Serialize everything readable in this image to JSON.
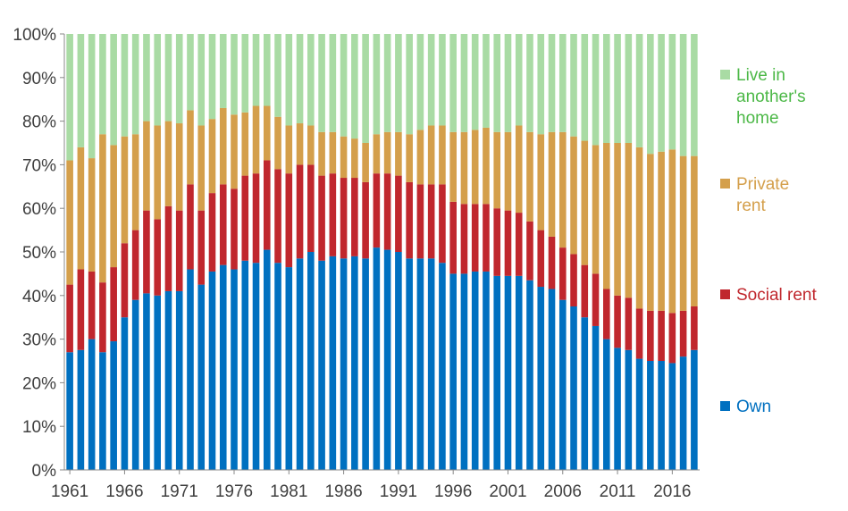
{
  "chart_data": {
    "type": "bar",
    "stacked": true,
    "title": "",
    "xlabel": "",
    "ylabel": "",
    "ylim": [
      0,
      100
    ],
    "y_ticks": [
      "0%",
      "10%",
      "20%",
      "30%",
      "40%",
      "50%",
      "60%",
      "70%",
      "80%",
      "90%",
      "100%"
    ],
    "x_tick_labels": [
      "1961",
      "1966",
      "1971",
      "1976",
      "1981",
      "1986",
      "1991",
      "1996",
      "2001",
      "2006",
      "2011",
      "2016"
    ],
    "categories": [
      1961,
      1962,
      1963,
      1964,
      1965,
      1966,
      1967,
      1968,
      1969,
      1970,
      1971,
      1972,
      1973,
      1974,
      1975,
      1976,
      1977,
      1978,
      1979,
      1980,
      1981,
      1982,
      1983,
      1984,
      1985,
      1986,
      1987,
      1988,
      1989,
      1990,
      1991,
      1992,
      1993,
      1994,
      1995,
      1996,
      1997,
      1998,
      1999,
      2000,
      2001,
      2002,
      2003,
      2004,
      2005,
      2006,
      2007,
      2008,
      2009,
      2010,
      2011,
      2012,
      2013,
      2014,
      2015,
      2016,
      2017,
      2018
    ],
    "grid": false,
    "legend_position": "right",
    "series": [
      {
        "name": "Own",
        "color": "#0070C0",
        "values": [
          27,
          27.5,
          30,
          27,
          29.5,
          35,
          39,
          40.5,
          40,
          41,
          41,
          46,
          42.5,
          45.5,
          47,
          46,
          48,
          47.5,
          50.5,
          47.5,
          46.5,
          48.5,
          50,
          48,
          49,
          48.5,
          49,
          48.5,
          51,
          50.5,
          50,
          48.5,
          48.5,
          48.5,
          47.5,
          45,
          45,
          45.5,
          45.5,
          44.5,
          44.5,
          44.5,
          43.5,
          42,
          41.5,
          39,
          37.5,
          35,
          33,
          30,
          28,
          27.5,
          25.5,
          25,
          25,
          24.5,
          26,
          27.5
        ]
      },
      {
        "name": "Social rent",
        "color": "#C0272D",
        "values": [
          15.5,
          18.5,
          15.5,
          16,
          17,
          17,
          16,
          19,
          17.5,
          19.5,
          18.5,
          19.5,
          17,
          18,
          18.5,
          18.5,
          19.5,
          20.5,
          20.5,
          21.5,
          21.5,
          21.5,
          20,
          19.5,
          19,
          18.5,
          18,
          17.5,
          17,
          17.5,
          17.5,
          17.5,
          17,
          17,
          18,
          16.5,
          16,
          15.5,
          15.5,
          15.5,
          15,
          14.5,
          13.5,
          13,
          12,
          12,
          12,
          12,
          12,
          11.5,
          12,
          12,
          11.5,
          11.5,
          11.5,
          11.5,
          10.5,
          10
        ]
      },
      {
        "name": "Private rent",
        "color": "#D49F4B",
        "values": [
          28.5,
          28,
          26,
          34,
          28,
          24.5,
          22,
          20.5,
          21.5,
          19.5,
          20,
          17,
          19.5,
          17,
          17.5,
          17,
          14.5,
          15.5,
          12.5,
          12,
          11,
          9.5,
          9,
          10,
          9.5,
          9.5,
          9,
          9,
          9,
          9.5,
          10,
          11,
          12.5,
          13.5,
          13.5,
          16,
          16.5,
          17,
          17.5,
          17.5,
          18,
          20,
          20.5,
          22,
          24,
          26.5,
          27,
          28.5,
          29.5,
          33.5,
          35,
          35.5,
          37,
          36,
          36.5,
          37.5,
          35.5,
          34.5
        ]
      },
      {
        "name": "Live in another's home",
        "color": "#A9DBA4",
        "values": [
          29,
          26,
          28.5,
          23,
          25.5,
          23.5,
          23,
          20,
          21,
          20,
          20.5,
          17.5,
          21,
          19.5,
          17,
          18.5,
          18,
          16.5,
          16.5,
          19,
          21,
          20.5,
          21,
          22.5,
          22.5,
          23.5,
          24,
          25,
          23,
          22.5,
          22.5,
          23,
          22,
          21,
          21,
          22.5,
          22.5,
          22,
          21.5,
          22.5,
          22.5,
          21,
          22.5,
          23,
          22.5,
          22.5,
          23.5,
          24.5,
          25.5,
          25,
          25,
          25,
          26,
          27.5,
          27,
          26.5,
          28,
          28
        ]
      }
    ],
    "legend": [
      {
        "label_lines": [
          "Live in",
          "another's",
          "home"
        ],
        "color": "#A9DBA4",
        "text_color": "#4CB847"
      },
      {
        "label_lines": [
          "Private",
          "rent"
        ],
        "color": "#D49F4B",
        "text_color": "#D49F4B"
      },
      {
        "label_lines": [
          "Social rent"
        ],
        "color": "#C0272D",
        "text_color": "#C0272D"
      },
      {
        "label_lines": [
          "Own"
        ],
        "color": "#0070C0",
        "text_color": "#0070C0"
      }
    ]
  }
}
